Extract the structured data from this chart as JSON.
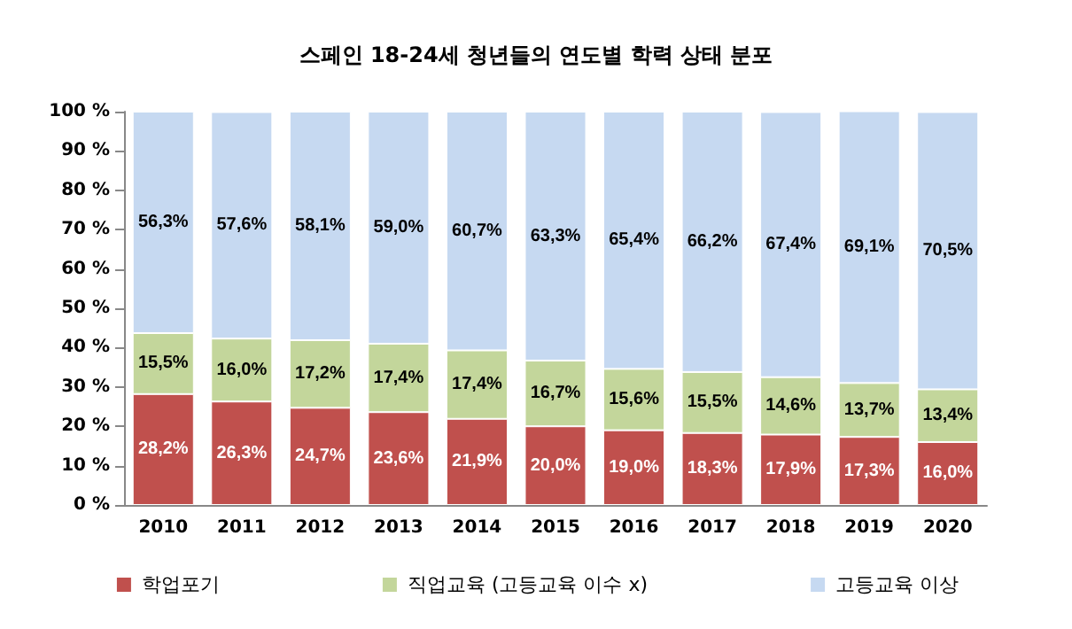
{
  "chart_data": {
    "type": "bar",
    "stacked": true,
    "title": "스페인 18-24세 청년들의 연도별 학력 상태 분포",
    "categories": [
      "2010",
      "2011",
      "2012",
      "2013",
      "2014",
      "2015",
      "2016",
      "2017",
      "2018",
      "2019",
      "2020"
    ],
    "series": [
      {
        "name": "학업포기",
        "color": "#c0504d",
        "values": [
          28.2,
          26.3,
          24.7,
          23.6,
          21.9,
          20.0,
          19.0,
          18.3,
          17.9,
          17.3,
          16.0
        ],
        "value_labels": [
          "28,2%",
          "26,3%",
          "24,7%",
          "23,6%",
          "21,9%",
          "20,0%",
          "19,0%",
          "18,3%",
          "17,9%",
          "17,3%",
          "16,0%"
        ]
      },
      {
        "name": "직업교육 (고등교육 이수 x)",
        "color": "#c3d69b",
        "values": [
          15.5,
          16.0,
          17.2,
          17.4,
          17.4,
          16.7,
          15.6,
          15.5,
          14.6,
          13.7,
          13.4
        ],
        "value_labels": [
          "15,5%",
          "16,0%",
          "17,2%",
          "17,4%",
          "17,4%",
          "16,7%",
          "15,6%",
          "15,5%",
          "14,6%",
          "13,7%",
          "13,4%"
        ]
      },
      {
        "name": "고등교육 이상",
        "color": "#c6d9f1",
        "values": [
          56.3,
          57.6,
          58.1,
          59.0,
          60.7,
          63.3,
          65.4,
          66.2,
          67.4,
          69.1,
          70.5
        ],
        "value_labels": [
          "56,3%",
          "57,6%",
          "58,1%",
          "59,0%",
          "60,7%",
          "63,3%",
          "65,4%",
          "66,2%",
          "67,4%",
          "69,1%",
          "70,5%"
        ]
      }
    ],
    "ylim": [
      0,
      100
    ],
    "yticks": [
      {
        "value": 0,
        "label": "0 %"
      },
      {
        "value": 10,
        "label": "10 %"
      },
      {
        "value": 20,
        "label": "20 %"
      },
      {
        "value": 30,
        "label": "30 %"
      },
      {
        "value": 40,
        "label": "40 %"
      },
      {
        "value": 50,
        "label": "50 %"
      },
      {
        "value": 60,
        "label": "60 %"
      },
      {
        "value": 70,
        "label": "70 %"
      },
      {
        "value": 80,
        "label": "80 %"
      },
      {
        "value": 90,
        "label": "90 %"
      },
      {
        "value": 100,
        "label": "100 %"
      }
    ],
    "legend": "bottom"
  }
}
